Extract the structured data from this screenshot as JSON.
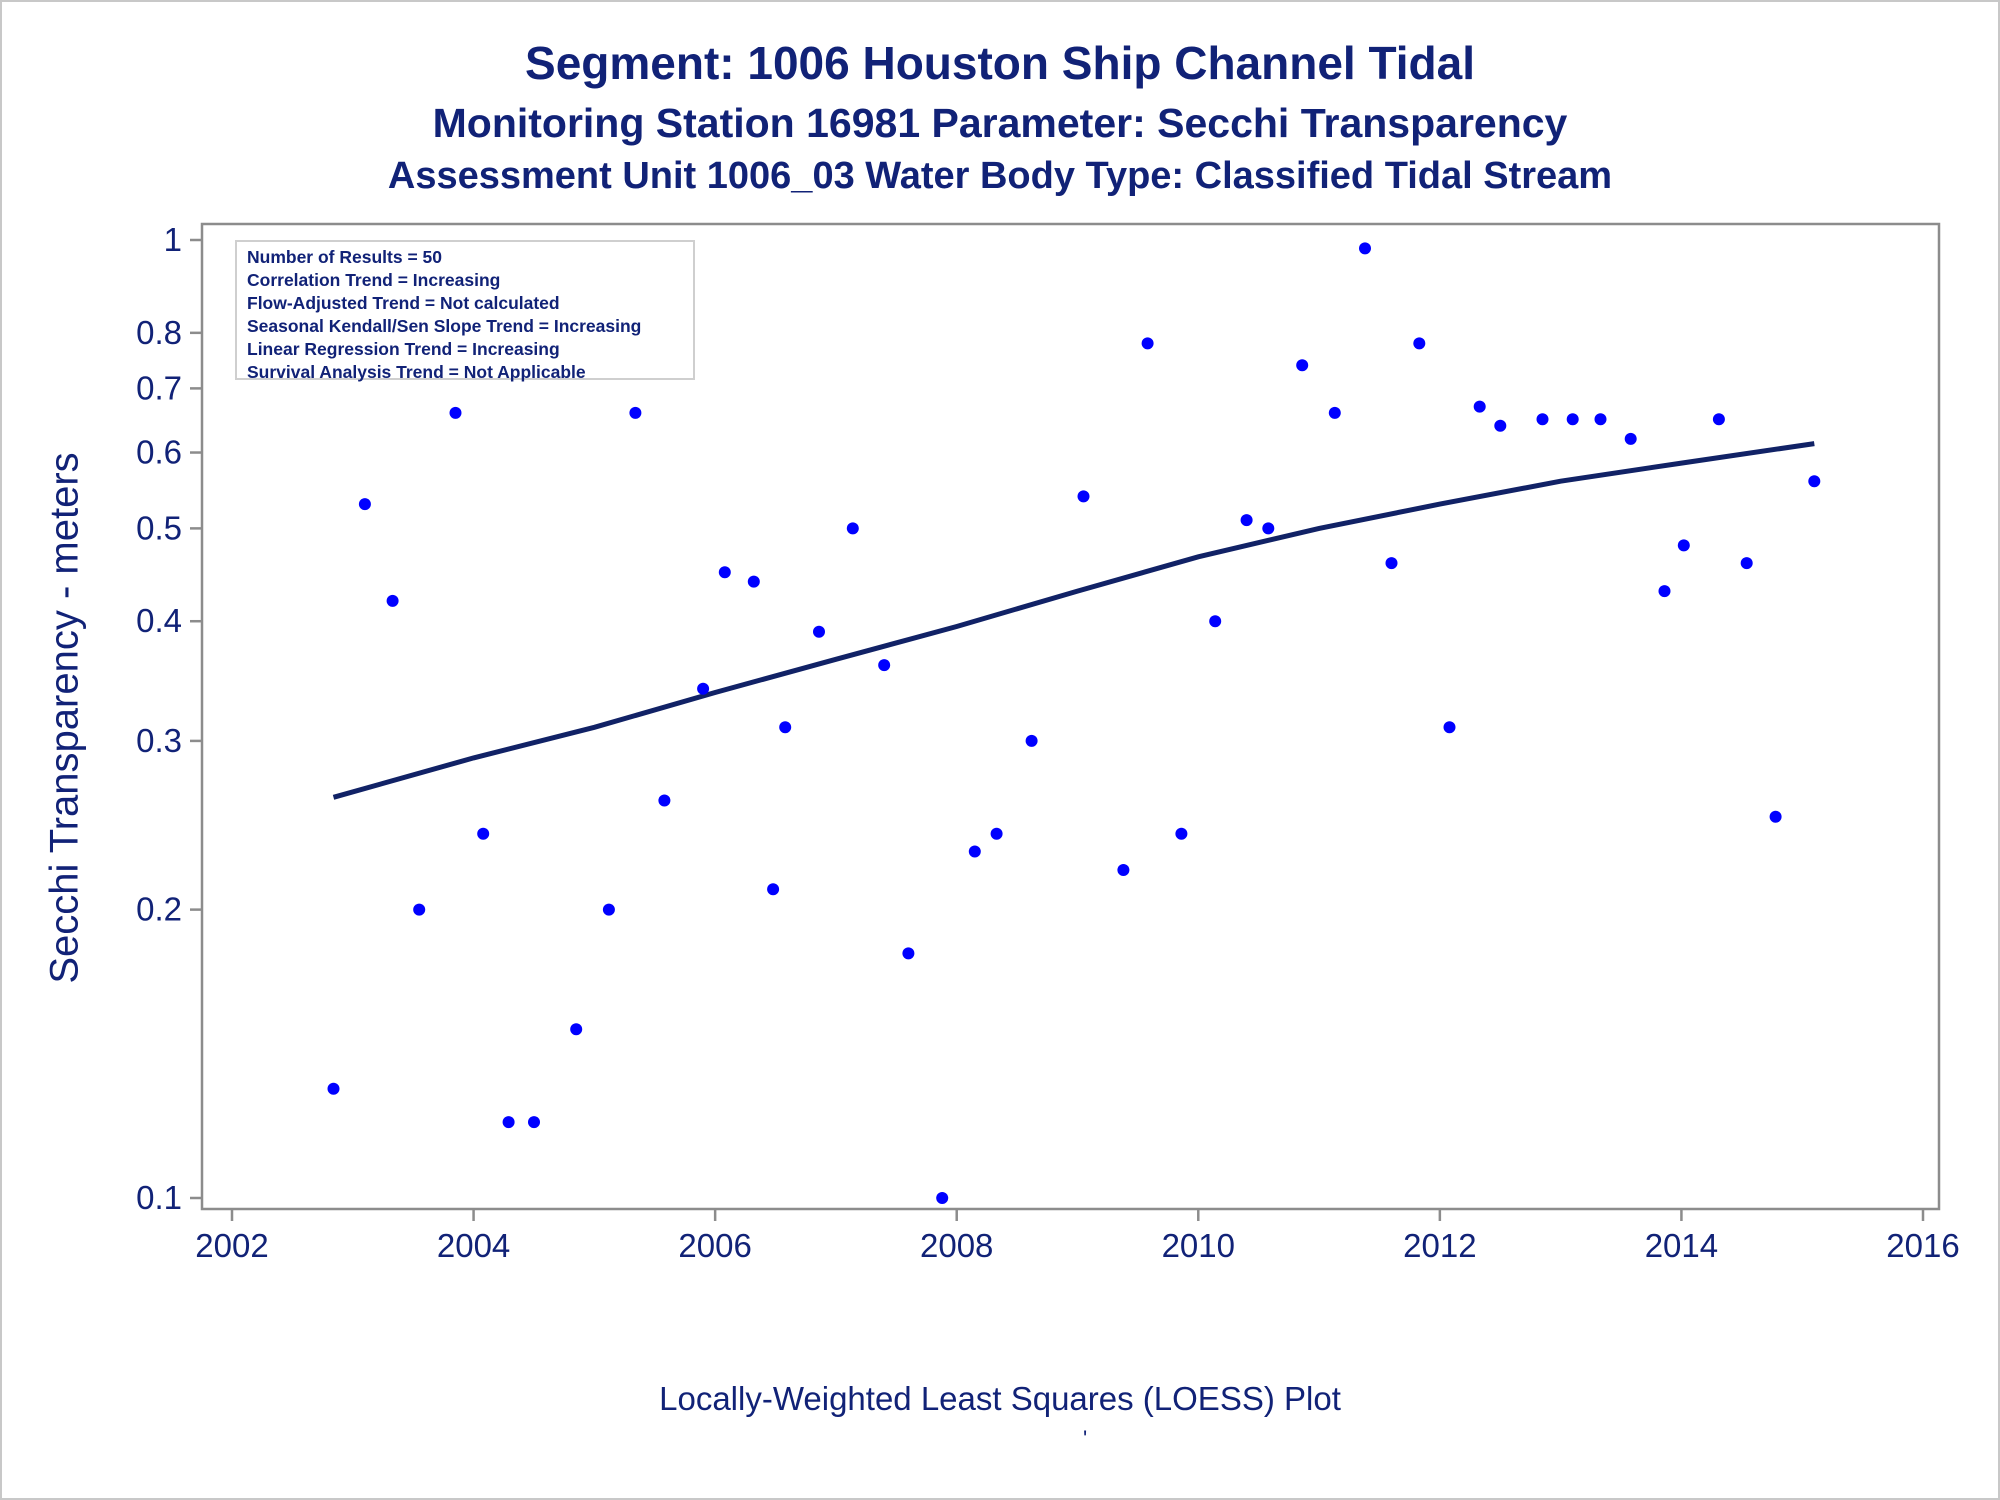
{
  "chart_data": {
    "type": "scatter",
    "title": "Segment: 1006  Houston Ship Channel Tidal",
    "subtitle": "Monitoring Station 16981 Parameter: Secchi Transparency",
    "subtitle2": "Assessment Unit 1006_03   Water Body Type: Classified Tidal Stream",
    "ylabel": "Secchi Transparency - meters",
    "xlabel": "",
    "footnote": "Locally-Weighted Least Squares (LOESS) Plot",
    "footmark": "'",
    "y_scale": "log",
    "xlim": [
      2002,
      2016
    ],
    "ylim": [
      0.1,
      1.0
    ],
    "xticks": [
      "2002",
      "2004",
      "2006",
      "2008",
      "2010",
      "2012",
      "2014",
      "2016"
    ],
    "yticks": [
      "0.1",
      "0.2",
      "0.3",
      "0.4",
      "0.5",
      "0.6",
      "0.7",
      "0.8",
      "1"
    ],
    "grid": false,
    "legend": {
      "placement": "top-left",
      "lines": [
        "Number of Results = 50",
        "Correlation Trend = Increasing",
        "Flow-Adjusted Trend = Not calculated",
        "Seasonal Kendall/Sen Slope Trend = Increasing",
        "Linear Regression Trend = Increasing",
        "Survival Analysis Trend = Not Applicable"
      ]
    },
    "series": [
      {
        "kind": "points",
        "color": "#0000ff",
        "x": [
          2002.84,
          2003.1,
          2003.33,
          2003.55,
          2003.85,
          2004.08,
          2004.29,
          2004.5,
          2004.85,
          2005.12,
          2005.34,
          2005.58,
          2005.9,
          2006.08,
          2006.32,
          2006.48,
          2006.58,
          2006.86,
          2007.14,
          2007.4,
          2007.6,
          2007.88,
          2008.15,
          2008.33,
          2008.62,
          2009.05,
          2009.38,
          2009.58,
          2009.86,
          2010.14,
          2010.4,
          2010.58,
          2010.86,
          2011.13,
          2011.38,
          2011.6,
          2011.83,
          2012.08,
          2012.33,
          2012.5,
          2012.85,
          2013.1,
          2013.33,
          2013.58,
          2013.86,
          2014.02,
          2014.31,
          2014.54,
          2014.78,
          2015.1
        ],
        "values": [
          0.13,
          0.53,
          0.42,
          0.2,
          0.66,
          0.24,
          0.12,
          0.12,
          0.15,
          0.2,
          0.66,
          0.26,
          0.34,
          0.45,
          0.44,
          0.21,
          0.31,
          0.39,
          0.5,
          0.36,
          0.18,
          0.1,
          0.23,
          0.24,
          0.3,
          0.54,
          0.22,
          0.78,
          0.24,
          0.4,
          0.51,
          0.5,
          0.74,
          0.66,
          0.98,
          0.46,
          0.78,
          0.31,
          0.67,
          0.64,
          0.65,
          0.65,
          0.65,
          0.62,
          0.43,
          0.48,
          0.65,
          0.46,
          0.25,
          0.56
        ]
      },
      {
        "kind": "loess",
        "color": "#112266",
        "x": [
          2002.84,
          2004.0,
          2005.0,
          2006.0,
          2007.0,
          2008.0,
          2009.0,
          2010.0,
          2011.0,
          2012.0,
          2013.0,
          2014.0,
          2015.1
        ],
        "values": [
          0.262,
          0.288,
          0.31,
          0.337,
          0.365,
          0.395,
          0.43,
          0.467,
          0.5,
          0.53,
          0.56,
          0.585,
          0.613
        ]
      }
    ]
  }
}
